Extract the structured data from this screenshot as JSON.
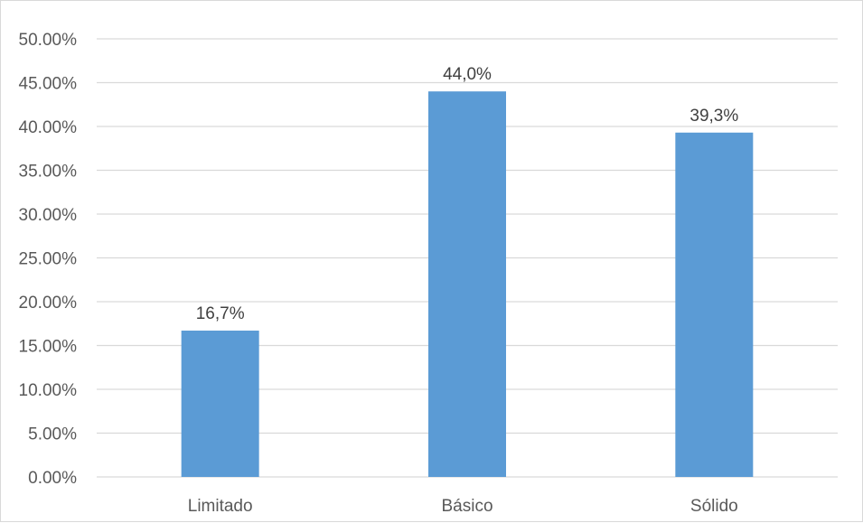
{
  "chart_data": {
    "type": "bar",
    "categories": [
      "Limitado",
      "Básico",
      "Sólido"
    ],
    "values": [
      16.7,
      44.0,
      39.3
    ],
    "data_labels": [
      "16,7%",
      "44,0%",
      "39,3%"
    ],
    "ylim": [
      0,
      50
    ],
    "yticks": [
      0,
      5,
      10,
      15,
      20,
      25,
      30,
      35,
      40,
      45,
      50
    ],
    "ytick_labels": [
      "0.00%",
      "5.00%",
      "10.00%",
      "15.00%",
      "20.00%",
      "25.00%",
      "30.00%",
      "35.00%",
      "40.00%",
      "45.00%",
      "50.00%"
    ],
    "grid": true,
    "legend": "none",
    "title": "",
    "xlabel": "",
    "ylabel": "",
    "bar_color": "#5b9bd5"
  }
}
